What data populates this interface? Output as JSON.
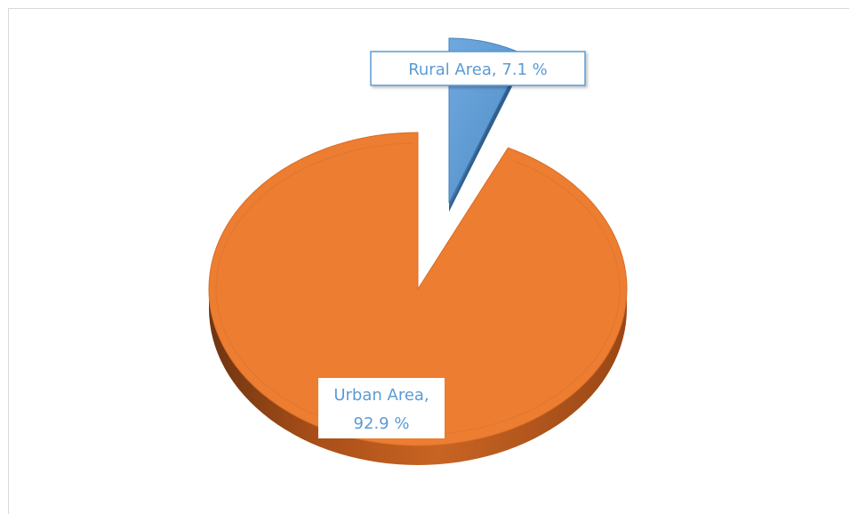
{
  "chart_data": {
    "type": "pie",
    "style": "3d-exploded",
    "categories": [
      "Urban Area",
      "Rural Area"
    ],
    "values": [
      92.9,
      7.1
    ],
    "unit": "%",
    "labels": [
      {
        "category": "Urban Area",
        "lines": [
          "Urban Area,",
          "92.9 %"
        ]
      },
      {
        "category": "Rural Area",
        "lines": [
          "Rural Area,  7.1 %"
        ]
      }
    ],
    "colors": {
      "Urban Area": "#ed7d31",
      "Rural Area": "#5b9bd5",
      "label_text": "#5b9bd5"
    },
    "title": "",
    "legend": "none"
  }
}
